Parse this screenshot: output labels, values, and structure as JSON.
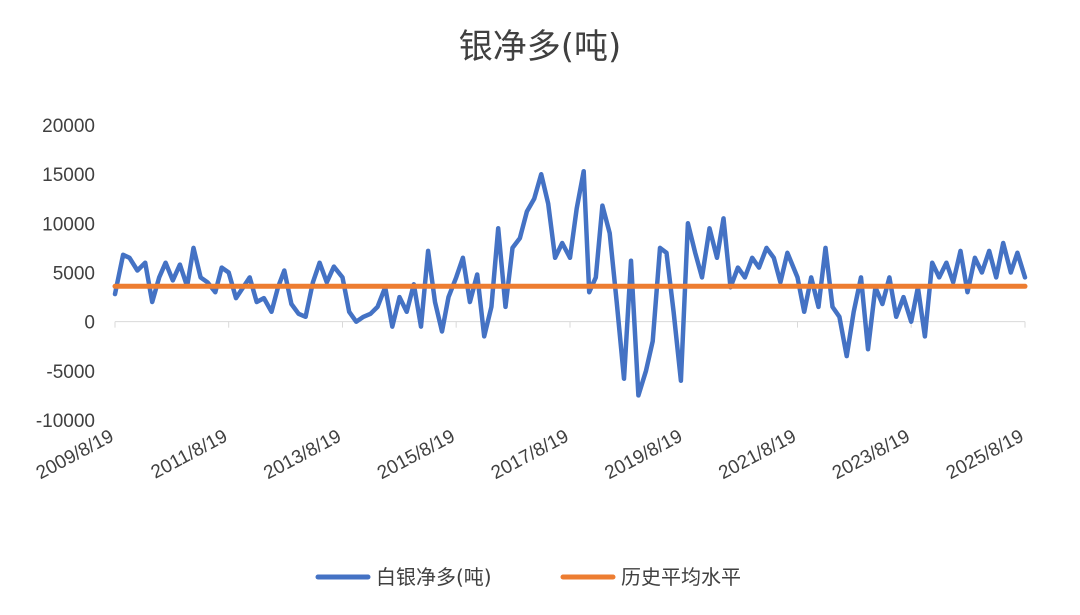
{
  "chart_data": {
    "type": "line",
    "title": "银净多(吨)",
    "xlabel": "",
    "ylabel": "",
    "ylim": [
      -10000,
      20000
    ],
    "yticks": [
      20000,
      15000,
      10000,
      5000,
      0,
      -5000,
      -10000
    ],
    "ytick_labels": [
      "20000",
      "15000",
      "10000",
      "5000",
      "0",
      "-5000",
      "-10000"
    ],
    "xlim": [
      "2009/8/19",
      "2025/8/19"
    ],
    "xtick_labels": [
      "2009/8/19",
      "2011/8/19",
      "2013/8/19",
      "2015/8/19",
      "2017/8/19",
      "2019/8/19",
      "2021/8/19",
      "2023/8/19",
      "2025/8/19"
    ],
    "legend_position": "bottom",
    "grid": false,
    "series": [
      {
        "name": "白银净多(吨)",
        "color": "#4472C4",
        "points": [
          [
            "2009/8/19",
            2800
          ],
          [
            "2009/10/10",
            6800
          ],
          [
            "2009/11/20",
            6500
          ],
          [
            "2010/1/10",
            5200
          ],
          [
            "2010/3/1",
            6000
          ],
          [
            "2010/4/15",
            2000
          ],
          [
            "2010/5/30",
            4500
          ],
          [
            "2010/7/10",
            6000
          ],
          [
            "2010/8/25",
            4200
          ],
          [
            "2010/10/10",
            5800
          ],
          [
            "2010/11/25",
            3600
          ],
          [
            "2011/1/5",
            7500
          ],
          [
            "2011/2/20",
            4500
          ],
          [
            "2011/4/5",
            4000
          ],
          [
            "2011/5/25",
            3000
          ],
          [
            "2011/7/5",
            5500
          ],
          [
            "2011/8/19",
            5000
          ],
          [
            "2011/10/5",
            2400
          ],
          [
            "2011/11/20",
            3500
          ],
          [
            "2012/1/1",
            4500
          ],
          [
            "2012/2/15",
            2000
          ],
          [
            "2012/4/1",
            2400
          ],
          [
            "2012/5/20",
            1000
          ],
          [
            "2012/7/1",
            3500
          ],
          [
            "2012/8/10",
            5200
          ],
          [
            "2012/9/25",
            1800
          ],
          [
            "2012/11/10",
            800
          ],
          [
            "2012/12/25",
            500
          ],
          [
            "2013/2/10",
            4000
          ],
          [
            "2013/3/25",
            6000
          ],
          [
            "2013/5/10",
            4000
          ],
          [
            "2013/6/25",
            5600
          ],
          [
            "2013/8/19",
            4500
          ],
          [
            "2013/10/1",
            1000
          ],
          [
            "2013/11/15",
            0
          ],
          [
            "2014/1/1",
            500
          ],
          [
            "2014/2/15",
            800
          ],
          [
            "2014/4/1",
            1500
          ],
          [
            "2014/5/20",
            3500
          ],
          [
            "2014/7/5",
            -500
          ],
          [
            "2014/8/20",
            2500
          ],
          [
            "2014/10/5",
            1000
          ],
          [
            "2014/11/20",
            3800
          ],
          [
            "2015/1/5",
            -500
          ],
          [
            "2015/2/20",
            7200
          ],
          [
            "2015/4/5",
            2000
          ],
          [
            "2015/5/20",
            -1000
          ],
          [
            "2015/7/1",
            2500
          ],
          [
            "2015/8/19",
            4500
          ],
          [
            "2015/10/1",
            6500
          ],
          [
            "2015/11/15",
            2000
          ],
          [
            "2016/1/1",
            4800
          ],
          [
            "2016/2/15",
            -1500
          ],
          [
            "2016/4/1",
            1500
          ],
          [
            "2016/5/15",
            9500
          ],
          [
            "2016/7/1",
            1500
          ],
          [
            "2016/8/15",
            7500
          ],
          [
            "2016/10/1",
            8500
          ],
          [
            "2016/11/15",
            11200
          ],
          [
            "2017/1/1",
            12500
          ],
          [
            "2017/2/15",
            15000
          ],
          [
            "2017/4/1",
            12000
          ],
          [
            "2017/5/15",
            6500
          ],
          [
            "2017/6/30",
            8000
          ],
          [
            "2017/8/19",
            6500
          ],
          [
            "2017/10/1",
            11500
          ],
          [
            "2017/11/15",
            15300
          ],
          [
            "2017/12/20",
            3000
          ],
          [
            "2018/2/1",
            4500
          ],
          [
            "2018/3/15",
            11800
          ],
          [
            "2018/5/1",
            9000
          ],
          [
            "2018/6/15",
            2000
          ],
          [
            "2018/8/1",
            -5800
          ],
          [
            "2018/9/15",
            6200
          ],
          [
            "2018/11/1",
            -7500
          ],
          [
            "2018/12/20",
            -5000
          ],
          [
            "2019/2/1",
            -2000
          ],
          [
            "2019/3/20",
            7500
          ],
          [
            "2019/5/1",
            7000
          ],
          [
            "2019/6/15",
            1000
          ],
          [
            "2019/8/1",
            -6000
          ],
          [
            "2019/9/15",
            10000
          ],
          [
            "2019/11/1",
            7000
          ],
          [
            "2019/12/15",
            4500
          ],
          [
            "2020/2/1",
            9500
          ],
          [
            "2020/3/20",
            6500
          ],
          [
            "2020/5/1",
            10500
          ],
          [
            "2020/6/15",
            3500
          ],
          [
            "2020/8/1",
            5500
          ],
          [
            "2020/9/15",
            4500
          ],
          [
            "2020/11/1",
            6500
          ],
          [
            "2020/12/15",
            5500
          ],
          [
            "2021/2/1",
            7500
          ],
          [
            "2021/3/20",
            6500
          ],
          [
            "2021/5/1",
            4000
          ],
          [
            "2021/6/15",
            7000
          ],
          [
            "2021/8/19",
            4500
          ],
          [
            "2021/10/1",
            1000
          ],
          [
            "2021/11/15",
            4500
          ],
          [
            "2022/1/1",
            1500
          ],
          [
            "2022/2/15",
            7500
          ],
          [
            "2022/4/1",
            1500
          ],
          [
            "2022/5/15",
            500
          ],
          [
            "2022/7/1",
            -3500
          ],
          [
            "2022/8/15",
            1000
          ],
          [
            "2022/10/1",
            4500
          ],
          [
            "2022/11/15",
            -2800
          ],
          [
            "2023/1/1",
            3500
          ],
          [
            "2023/2/15",
            1800
          ],
          [
            "2023/4/1",
            4500
          ],
          [
            "2023/5/15",
            500
          ],
          [
            "2023/7/1",
            2500
          ],
          [
            "2023/8/19",
            0
          ],
          [
            "2023/10/1",
            3500
          ],
          [
            "2023/11/15",
            -1500
          ],
          [
            "2024/1/1",
            6000
          ],
          [
            "2024/2/15",
            4500
          ],
          [
            "2024/4/1",
            6000
          ],
          [
            "2024/5/15",
            4000
          ],
          [
            "2024/7/1",
            7200
          ],
          [
            "2024/8/15",
            3000
          ],
          [
            "2024/10/1",
            6500
          ],
          [
            "2024/11/15",
            5000
          ],
          [
            "2025/1/1",
            7200
          ],
          [
            "2025/2/15",
            4500
          ],
          [
            "2025/4/1",
            8000
          ],
          [
            "2025/5/20",
            5000
          ],
          [
            "2025/7/1",
            7000
          ],
          [
            "2025/8/19",
            4500
          ]
        ]
      },
      {
        "name": "历史平均水平",
        "color": "#ED7D31",
        "points": [
          [
            "2009/8/19",
            3600
          ],
          [
            "2025/8/19",
            3600
          ]
        ]
      }
    ]
  }
}
